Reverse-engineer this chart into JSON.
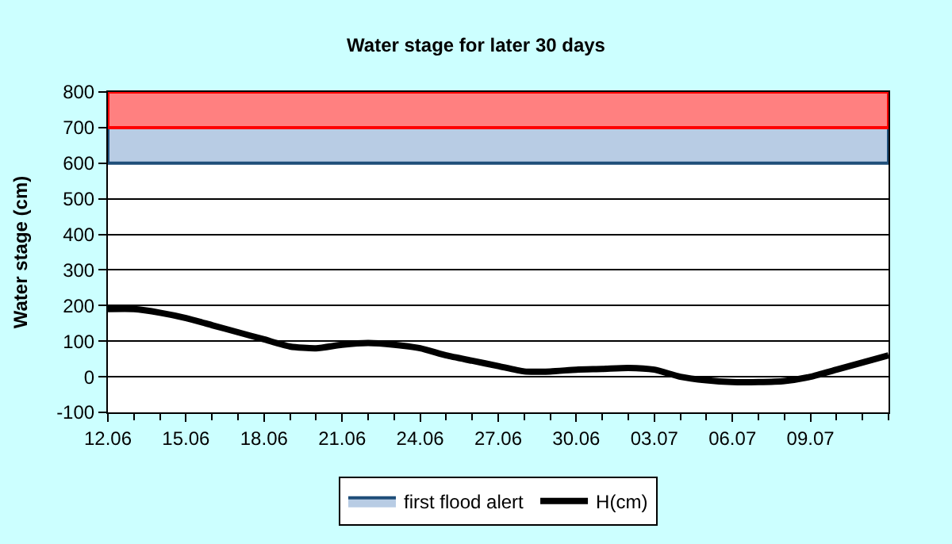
{
  "chart_data": {
    "type": "line",
    "title": "Water stage for later 30 days",
    "ylabel": "Water stage (cm)",
    "x": [
      "--06-12",
      "--06-13",
      "--06-14",
      "--06-15",
      "--06-16",
      "--06-17",
      "--06-18",
      "--06-19",
      "--06-20",
      "--06-21",
      "--06-22",
      "--06-23",
      "--06-24",
      "--06-25",
      "--06-26",
      "--06-27",
      "--06-28",
      "--06-29",
      "--06-30",
      "--07-01",
      "--07-02",
      "--07-03",
      "--07-04",
      "--07-05",
      "--07-06",
      "--07-07",
      "--07-08",
      "--07-09",
      "--07-10",
      "--07-11",
      "--07-12"
    ],
    "series": [
      {
        "name": "H(cm)",
        "color": "#000000",
        "values": [
          190,
          190,
          180,
          165,
          145,
          125,
          105,
          85,
          80,
          90,
          95,
          90,
          80,
          60,
          45,
          30,
          15,
          15,
          20,
          22,
          25,
          20,
          0,
          -10,
          -15,
          -15,
          -12,
          0,
          20,
          40,
          60
        ]
      }
    ],
    "bands": [
      {
        "axis": "y",
        "from": 600,
        "to": 700,
        "label": "first flood alert",
        "color": "#b8cce4"
      },
      {
        "axis": "y",
        "from": 700,
        "to": 800,
        "color": "#ff8080"
      }
    ],
    "xlim": [
      "--06-12",
      "--07-12"
    ],
    "xticks": [
      {
        "value": "--06-12",
        "label": "12.06"
      },
      {
        "value": "--06-15",
        "label": "15.06"
      },
      {
        "value": "--06-18",
        "label": "18.06"
      },
      {
        "value": "--06-21",
        "label": "21.06"
      },
      {
        "value": "--06-24",
        "label": "24.06"
      },
      {
        "value": "--06-27",
        "label": "27.06"
      },
      {
        "value": "--06-30",
        "label": "30.06"
      },
      {
        "value": "--07-03",
        "label": "03.07"
      },
      {
        "value": "--07-06",
        "label": "06.07"
      },
      {
        "value": "--07-09",
        "label": "09.07"
      }
    ],
    "ylim": [
      -100,
      800
    ],
    "yticks": [
      -100,
      0,
      100,
      200,
      300,
      400,
      500,
      600,
      700,
      800
    ],
    "grid": "y",
    "legend": "bottom",
    "marker": "none",
    "line_style": "solid"
  }
}
